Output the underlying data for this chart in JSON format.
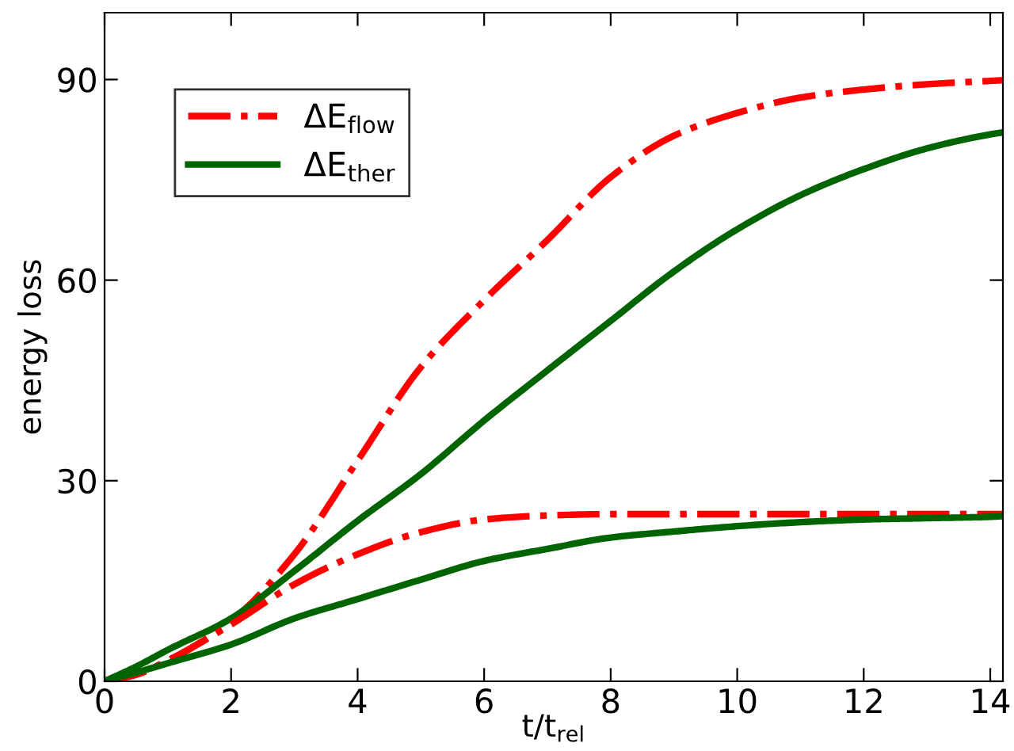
{
  "chart_data": {
    "type": "line",
    "xlabel": "t/t$_{rel}$",
    "ylabel": "energy loss",
    "x": [
      0,
      0.5,
      1,
      2,
      3,
      4,
      5,
      6,
      7,
      8,
      9,
      10,
      11,
      12,
      13,
      14,
      14.2
    ],
    "xlim": [
      0,
      14.2
    ],
    "xticks": [
      0,
      2,
      4,
      6,
      8,
      10,
      12,
      14
    ],
    "ylim": [
      0,
      100
    ],
    "yticks": [
      0,
      30,
      60,
      90
    ],
    "grid": false,
    "legend": "top left",
    "marker": "none",
    "series": [
      {
        "name": "ΔE$_{flow}$",
        "color": "#ff0000",
        "line_style": "dashdot",
        "values": [
          0,
          1,
          3.1,
          9,
          19,
          33,
          47,
          57,
          66,
          75.4,
          81.6,
          85,
          87.3,
          88.5,
          89.3,
          89.8,
          89.9
        ]
      },
      {
        "name": "ΔE$_{ther}$",
        "color": "#006400",
        "line_style": "solid",
        "values": [
          0,
          2.2,
          4.7,
          9.4,
          16.5,
          24,
          31,
          39,
          46.5,
          53.9,
          61.3,
          67.6,
          72.7,
          76.6,
          79.7,
          81.8,
          82.1
        ]
      },
      {
        "color": "#ff0000",
        "line_style": "dashdot",
        "values": [
          0,
          1,
          3.1,
          8.5,
          14.5,
          19,
          22.3,
          24.2,
          24.8,
          25,
          25,
          25,
          25,
          25,
          25,
          25,
          25
        ]
      },
      {
        "color": "#006400",
        "line_style": "solid",
        "values": [
          0,
          1.3,
          2.7,
          5.5,
          9.4,
          12.3,
          15.2,
          18,
          19.8,
          21.5,
          22.4,
          23.2,
          23.8,
          24.2,
          24.4,
          24.6,
          24.7
        ]
      }
    ]
  }
}
